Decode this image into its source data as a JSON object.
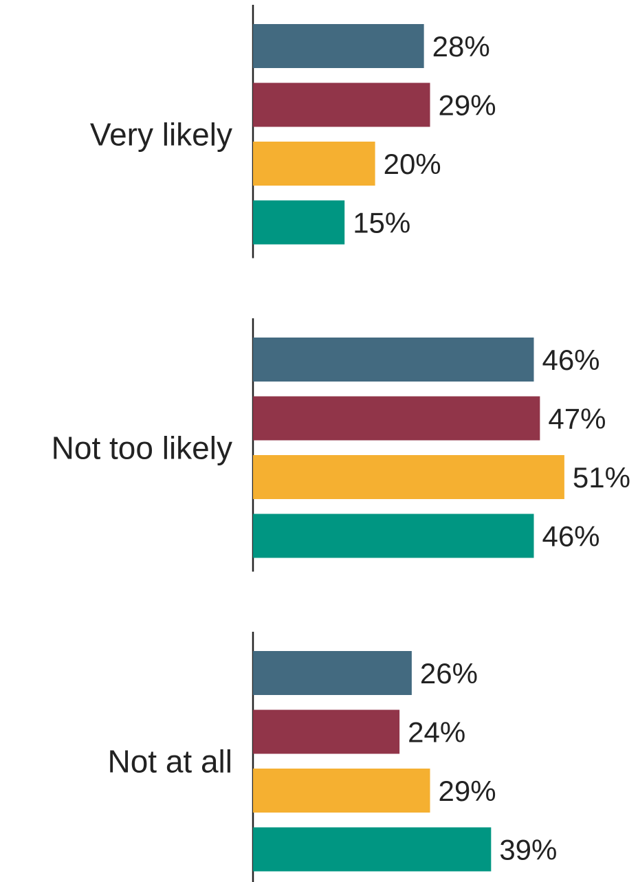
{
  "chart_data": {
    "type": "bar",
    "orientation": "horizontal",
    "title": "",
    "xlabel": "",
    "ylabel": "",
    "categories": [
      "Very likely",
      "Not too likely",
      "Not at all"
    ],
    "series": [
      {
        "color": "#436a80",
        "values": [
          28,
          46,
          26
        ]
      },
      {
        "color": "#913549",
        "values": [
          29,
          47,
          24
        ]
      },
      {
        "color": "#f5b031",
        "values": [
          20,
          51,
          29
        ]
      },
      {
        "color": "#009682",
        "values": [
          15,
          46,
          39
        ]
      }
    ],
    "value_suffix": "%",
    "grid": false,
    "legend": "none"
  }
}
